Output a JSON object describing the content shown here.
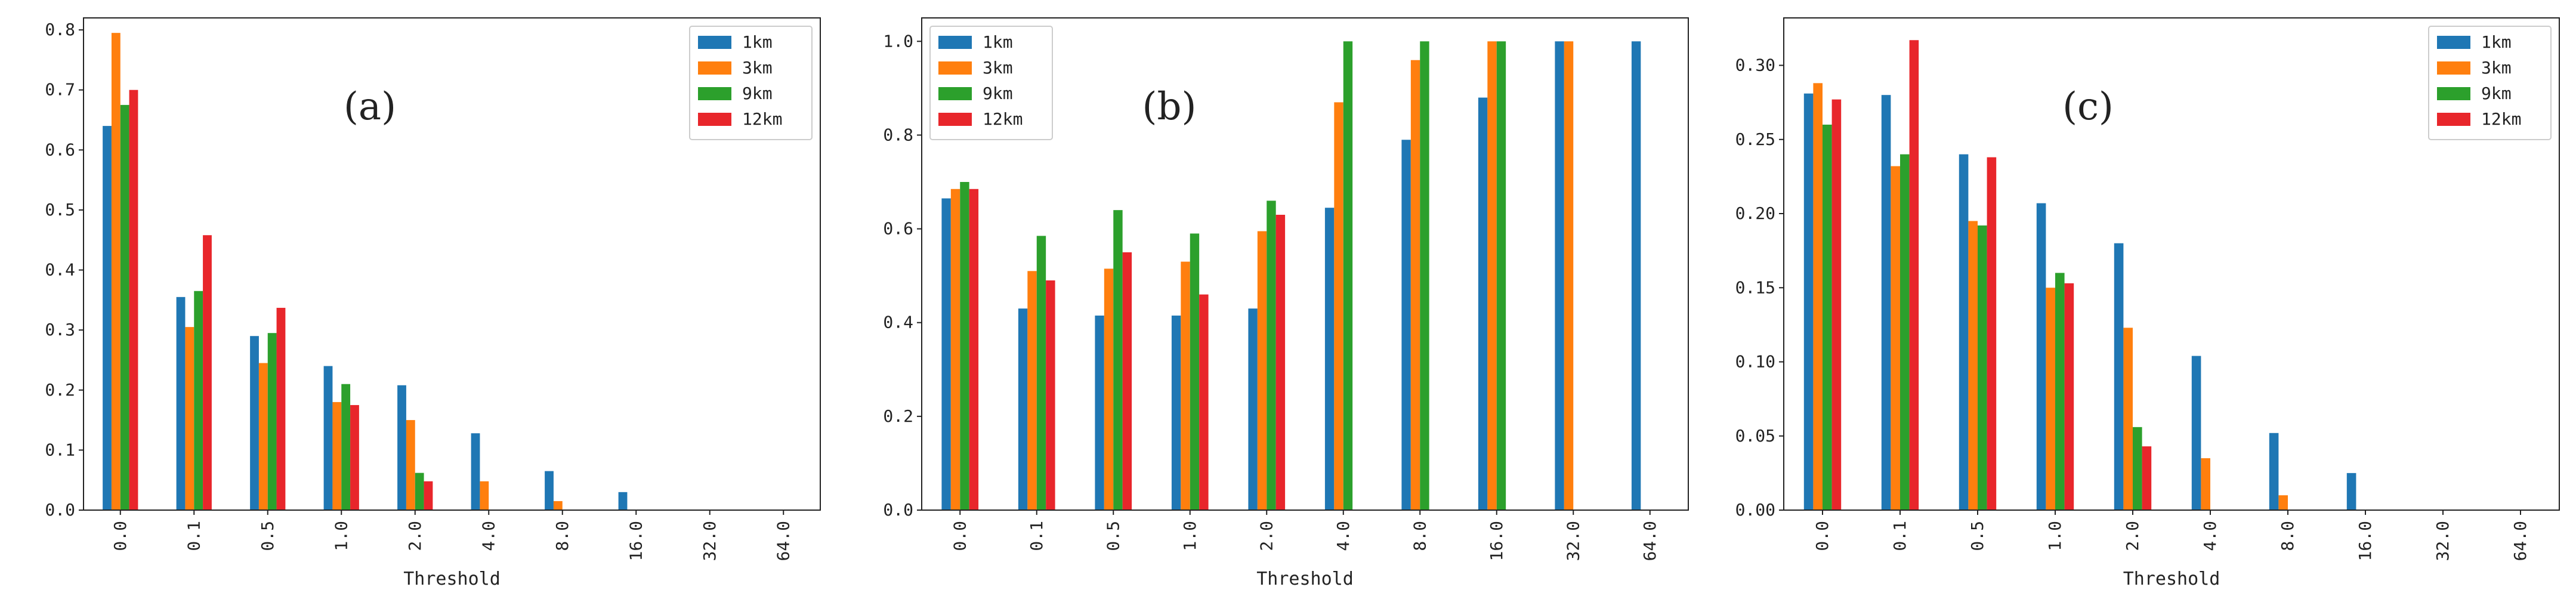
{
  "colors": {
    "1km": "#1f77b4",
    "3km": "#ff7f0e",
    "9km": "#2ca02c",
    "12km": "#e8262b"
  },
  "chart_data": [
    {
      "type": "bar",
      "panel_label": "(a)",
      "xlabel": "Threshold",
      "ylabel": "",
      "ylim": [
        0,
        0.82
      ],
      "yticks": [
        0.0,
        0.1,
        0.2,
        0.3,
        0.4,
        0.5,
        0.6,
        0.7,
        0.8
      ],
      "ytick_labels": [
        "0.0",
        "0.1",
        "0.2",
        "0.3",
        "0.4",
        "0.5",
        "0.6",
        "0.7",
        "0.8"
      ],
      "categories": [
        "0.0",
        "0.1",
        "0.5",
        "1.0",
        "2.0",
        "4.0",
        "8.0",
        "16.0",
        "32.0",
        "64.0"
      ],
      "legend": "top-right",
      "series": [
        {
          "name": "1km",
          "values": [
            0.64,
            0.355,
            0.29,
            0.24,
            0.208,
            0.128,
            0.065,
            0.03,
            0,
            0
          ]
        },
        {
          "name": "3km",
          "values": [
            0.795,
            0.305,
            0.245,
            0.18,
            0.15,
            0.048,
            0.015,
            0,
            0,
            0
          ]
        },
        {
          "name": "9km",
          "values": [
            0.675,
            0.365,
            0.295,
            0.21,
            0.062,
            0,
            0,
            0,
            0,
            0
          ]
        },
        {
          "name": "12km",
          "values": [
            0.7,
            0.458,
            0.337,
            0.175,
            0.048,
            0,
            0,
            0,
            0,
            0
          ]
        }
      ]
    },
    {
      "type": "bar",
      "panel_label": "(b)",
      "xlabel": "Threshold",
      "ylabel": "",
      "ylim": [
        0,
        1.05
      ],
      "yticks": [
        0.0,
        0.2,
        0.4,
        0.6,
        0.8,
        1.0
      ],
      "ytick_labels": [
        "0.0",
        "0.2",
        "0.4",
        "0.6",
        "0.8",
        "1.0"
      ],
      "categories": [
        "0.0",
        "0.1",
        "0.5",
        "1.0",
        "2.0",
        "4.0",
        "8.0",
        "16.0",
        "32.0",
        "64.0"
      ],
      "legend": "top-left",
      "series": [
        {
          "name": "1km",
          "values": [
            0.665,
            0.43,
            0.415,
            0.415,
            0.43,
            0.645,
            0.79,
            0.88,
            1.0,
            1.0
          ]
        },
        {
          "name": "3km",
          "values": [
            0.685,
            0.51,
            0.515,
            0.53,
            0.595,
            0.87,
            0.96,
            1.0,
            1.0,
            0
          ]
        },
        {
          "name": "9km",
          "values": [
            0.7,
            0.585,
            0.64,
            0.59,
            0.66,
            1.0,
            1.0,
            1.0,
            0,
            0
          ]
        },
        {
          "name": "12km",
          "values": [
            0.685,
            0.49,
            0.55,
            0.46,
            0.63,
            0,
            0,
            0,
            0,
            0
          ]
        }
      ]
    },
    {
      "type": "bar",
      "panel_label": "(c)",
      "xlabel": "Threshold",
      "ylabel": "",
      "ylim": [
        0,
        0.332
      ],
      "yticks": [
        0.0,
        0.05,
        0.1,
        0.15,
        0.2,
        0.25,
        0.3
      ],
      "ytick_labels": [
        "0.00",
        "0.05",
        "0.10",
        "0.15",
        "0.20",
        "0.25",
        "0.30"
      ],
      "categories": [
        "0.0",
        "0.1",
        "0.5",
        "1.0",
        "2.0",
        "4.0",
        "8.0",
        "16.0",
        "32.0",
        "64.0"
      ],
      "legend": "top-right",
      "series": [
        {
          "name": "1km",
          "values": [
            0.281,
            0.28,
            0.24,
            0.207,
            0.18,
            0.104,
            0.052,
            0.025,
            0,
            0
          ]
        },
        {
          "name": "3km",
          "values": [
            0.288,
            0.232,
            0.195,
            0.15,
            0.123,
            0.035,
            0.01,
            0,
            0,
            0
          ]
        },
        {
          "name": "9km",
          "values": [
            0.26,
            0.24,
            0.192,
            0.16,
            0.056,
            0,
            0,
            0,
            0,
            0
          ]
        },
        {
          "name": "12km",
          "values": [
            0.277,
            0.317,
            0.238,
            0.153,
            0.043,
            0,
            0,
            0,
            0,
            0
          ]
        }
      ]
    }
  ]
}
